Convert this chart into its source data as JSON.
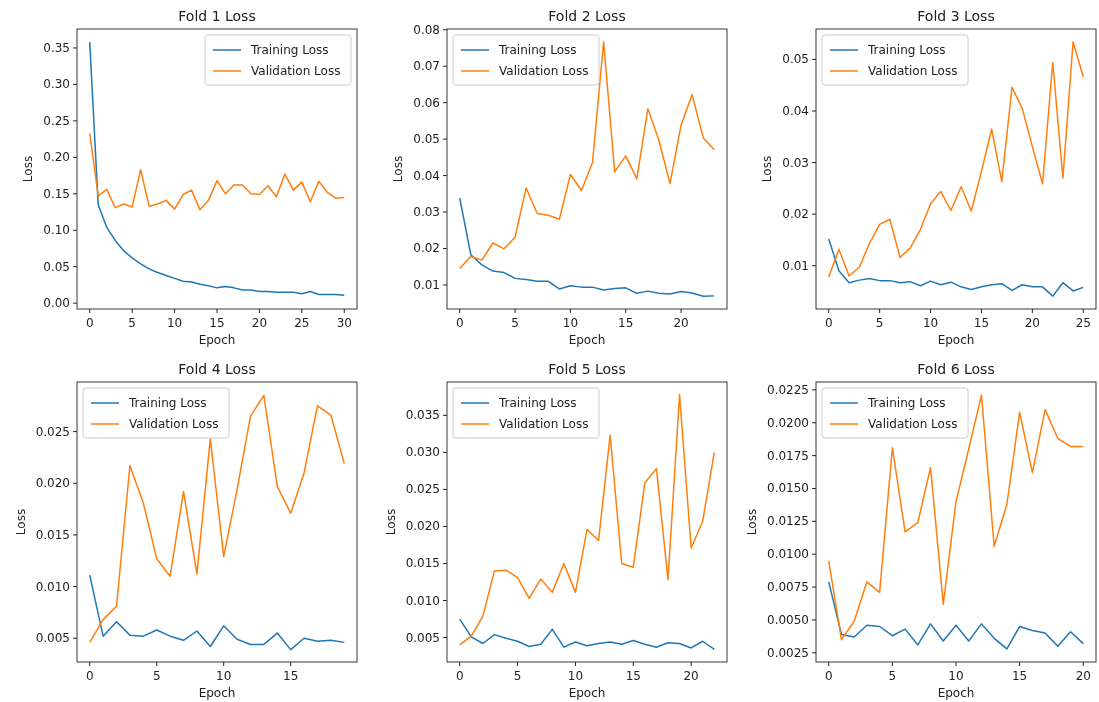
{
  "chart_data": [
    {
      "type": "line",
      "title": "Fold 1 Loss",
      "xlabel": "Epoch",
      "ylabel": "Loss",
      "legend": "top right",
      "grid": false,
      "xlim": [
        -1.5,
        31.5
      ],
      "xticks": [
        0,
        5,
        10,
        15,
        20,
        25,
        30
      ],
      "ylim": [
        -0.008,
        0.376
      ],
      "yticks": [
        {
          "value": 0,
          "label": "0.00"
        },
        0.05,
        {
          "value": 0.1,
          "label": "0.10"
        },
        0.15,
        {
          "value": 0.2,
          "label": "0.20"
        },
        0.25,
        {
          "value": 0.3,
          "label": "0.30"
        },
        0.35
      ],
      "x": [
        0,
        1,
        2,
        3,
        4,
        5,
        6,
        7,
        8,
        9,
        10,
        11,
        12,
        13,
        14,
        15,
        16,
        17,
        18,
        19,
        20,
        21,
        22,
        23,
        24,
        25,
        26,
        27,
        28,
        29,
        30
      ],
      "series": [
        {
          "name": "Training Loss",
          "color": "#1f77b4",
          "values": [
            0.358,
            0.135,
            0.104,
            0.086,
            0.072,
            0.062,
            0.054,
            0.047,
            0.042,
            0.038,
            0.034,
            0.03,
            0.029,
            0.026,
            0.024,
            0.021,
            0.023,
            0.021,
            0.018,
            0.018,
            0.016,
            0.016,
            0.015,
            0.015,
            0.015,
            0.013,
            0.016,
            0.012,
            0.012,
            0.012,
            0.011
          ]
        },
        {
          "name": "Validation Loss",
          "color": "#ff7f0e",
          "values": [
            0.233,
            0.147,
            0.156,
            0.131,
            0.136,
            0.132,
            0.183,
            0.133,
            0.136,
            0.141,
            0.129,
            0.149,
            0.155,
            0.128,
            0.141,
            0.168,
            0.15,
            0.162,
            0.162,
            0.15,
            0.149,
            0.161,
            0.146,
            0.177,
            0.155,
            0.166,
            0.139,
            0.167,
            0.152,
            0.144,
            0.145
          ]
        }
      ]
    },
    {
      "type": "line",
      "title": "Fold 2 Loss",
      "xlabel": "Epoch",
      "ylabel": "Loss",
      "legend": "top left",
      "grid": false,
      "xlim": [
        -1.15,
        24.15
      ],
      "xticks": [
        0,
        5,
        10,
        15,
        20
      ],
      "ylim": [
        0.0034,
        0.0802
      ],
      "yticks": [
        0.01,
        {
          "value": 0.02,
          "label": "0.02"
        },
        0.03,
        0.04,
        0.05,
        0.06,
        0.07,
        0.08
      ],
      "x": [
        0,
        1,
        2,
        3,
        4,
        5,
        6,
        7,
        8,
        9,
        10,
        11,
        12,
        13,
        14,
        15,
        16,
        17,
        18,
        19,
        20,
        21,
        22,
        23
      ],
      "series": [
        {
          "name": "Training Loss",
          "color": "#1f77b4",
          "values": [
            0.0338,
            0.0183,
            0.0155,
            0.0138,
            0.0134,
            0.0118,
            0.0115,
            0.011,
            0.011,
            0.0089,
            0.0098,
            0.0094,
            0.0094,
            0.0086,
            0.009,
            0.0092,
            0.0077,
            0.0083,
            0.0077,
            0.0075,
            0.0082,
            0.0078,
            0.0069,
            0.007
          ]
        },
        {
          "name": "Validation Loss",
          "color": "#ff7f0e",
          "values": [
            0.0145,
            0.0178,
            0.0168,
            0.0215,
            0.0199,
            0.0231,
            0.0366,
            0.0296,
            0.0291,
            0.028,
            0.0403,
            0.0359,
            0.0436,
            0.0767,
            0.041,
            0.0454,
            0.0391,
            0.0583,
            0.0497,
            0.0378,
            0.0539,
            0.0622,
            0.0504,
            0.0471
          ]
        }
      ]
    },
    {
      "type": "line",
      "title": "Fold 3 Loss",
      "xlabel": "Epoch",
      "ylabel": "Loss",
      "legend": "top left",
      "grid": false,
      "xlim": [
        -1.25,
        26.25
      ],
      "xticks": [
        0,
        5,
        10,
        15,
        20,
        25
      ],
      "ylim": [
        0.0016,
        0.0559
      ],
      "yticks": [
        0.01,
        0.02,
        0.03,
        0.04,
        0.05
      ],
      "x": [
        0,
        1,
        2,
        3,
        4,
        5,
        6,
        7,
        8,
        9,
        10,
        11,
        12,
        13,
        14,
        15,
        16,
        17,
        18,
        19,
        20,
        21,
        22,
        23,
        24,
        25
      ],
      "series": [
        {
          "name": "Training Loss",
          "color": "#1f77b4",
          "values": [
            0.0152,
            0.009,
            0.0067,
            0.0072,
            0.0075,
            0.0071,
            0.0071,
            0.0067,
            0.0069,
            0.0061,
            0.007,
            0.0063,
            0.0068,
            0.0059,
            0.0054,
            0.0059,
            0.0063,
            0.0065,
            0.0052,
            0.0063,
            0.0059,
            0.0059,
            0.0041,
            0.0067,
            0.0051,
            0.0058
          ]
        },
        {
          "name": "Validation Loss",
          "color": "#ff7f0e",
          "values": [
            0.0078,
            0.0132,
            0.008,
            0.0097,
            0.0143,
            0.018,
            0.019,
            0.0116,
            0.0134,
            0.017,
            0.022,
            0.0244,
            0.0207,
            0.0253,
            0.0206,
            0.0283,
            0.0365,
            0.0263,
            0.0446,
            0.0405,
            0.0331,
            0.0259,
            0.0494,
            0.027,
            0.0534,
            0.0466
          ]
        }
      ]
    },
    {
      "type": "line",
      "title": "Fold 4 Loss",
      "xlabel": "Epoch",
      "ylabel": "Loss",
      "legend": "top left",
      "grid": false,
      "xlim": [
        -0.95,
        19.95
      ],
      "xticks": [
        0,
        5,
        10,
        15
      ],
      "ylim": [
        0.0027,
        0.0298
      ],
      "yticks": [
        0.005,
        {
          "value": 0.01,
          "label": "0.010"
        },
        0.015,
        {
          "value": 0.02,
          "label": "0.020"
        },
        0.025
      ],
      "x": [
        0,
        1,
        2,
        3,
        4,
        5,
        6,
        7,
        8,
        9,
        10,
        11,
        12,
        13,
        14,
        15,
        16,
        17,
        18,
        19
      ],
      "series": [
        {
          "name": "Training Loss",
          "color": "#1f77b4",
          "values": [
            0.0111,
            0.0052,
            0.0066,
            0.0053,
            0.0052,
            0.0058,
            0.0052,
            0.0048,
            0.0057,
            0.0042,
            0.0062,
            0.0049,
            0.0044,
            0.0044,
            0.0055,
            0.0039,
            0.005,
            0.0047,
            0.0048,
            0.0046
          ]
        },
        {
          "name": "Validation Loss",
          "color": "#ff7f0e",
          "values": [
            0.0046,
            0.0068,
            0.0081,
            0.0217,
            0.0181,
            0.0127,
            0.011,
            0.0192,
            0.0112,
            0.0243,
            0.0129,
            0.0194,
            0.0265,
            0.0285,
            0.0197,
            0.0171,
            0.021,
            0.0275,
            0.0266,
            0.0219
          ]
        }
      ]
    },
    {
      "type": "line",
      "title": "Fold 5 Loss",
      "xlabel": "Epoch",
      "ylabel": "Loss",
      "legend": "top left",
      "grid": false,
      "xlim": [
        -1.1,
        23.1
      ],
      "xticks": [
        0,
        5,
        10,
        15,
        20
      ],
      "ylim": [
        0.0017,
        0.0395
      ],
      "yticks": [
        0.005,
        {
          "value": 0.01,
          "label": "0.010"
        },
        0.015,
        {
          "value": 0.02,
          "label": "0.020"
        },
        0.025,
        {
          "value": 0.03,
          "label": "0.030"
        },
        0.035
      ],
      "x": [
        0,
        1,
        2,
        3,
        4,
        5,
        6,
        7,
        8,
        9,
        10,
        11,
        12,
        13,
        14,
        15,
        16,
        17,
        18,
        19,
        20,
        21,
        22
      ],
      "series": [
        {
          "name": "Training Loss",
          "color": "#1f77b4",
          "values": [
            0.0075,
            0.0051,
            0.0042,
            0.0054,
            0.0049,
            0.0045,
            0.0038,
            0.0041,
            0.0061,
            0.0037,
            0.0044,
            0.0039,
            0.0042,
            0.0044,
            0.0041,
            0.0046,
            0.0041,
            0.0037,
            0.0043,
            0.0042,
            0.0036,
            0.0045,
            0.0034
          ]
        },
        {
          "name": "Validation Loss",
          "color": "#ff7f0e",
          "values": [
            0.004,
            0.0052,
            0.0079,
            0.014,
            0.0141,
            0.0131,
            0.0103,
            0.0129,
            0.0111,
            0.015,
            0.0111,
            0.0196,
            0.0181,
            0.0323,
            0.015,
            0.0145,
            0.0259,
            0.0278,
            0.0128,
            0.0378,
            0.0171,
            0.0207,
            0.03
          ]
        }
      ]
    },
    {
      "type": "line",
      "title": "Fold 6 Loss",
      "xlabel": "Epoch",
      "ylabel": "Loss",
      "legend": "top left",
      "grid": false,
      "xlim": [
        -1,
        21
      ],
      "xticks": [
        0,
        5,
        10,
        15,
        20
      ],
      "ylim": [
        0.0018,
        0.0231
      ],
      "yticks": [
        0.0025,
        {
          "value": 0.005,
          "label": "0.0050"
        },
        0.0075,
        {
          "value": 0.01,
          "label": "0.0100"
        },
        0.0125,
        {
          "value": 0.015,
          "label": "0.0150"
        },
        0.0175,
        {
          "value": 0.02,
          "label": "0.0200"
        },
        0.0225
      ],
      "x": [
        0,
        1,
        2,
        3,
        4,
        5,
        6,
        7,
        8,
        9,
        10,
        11,
        12,
        13,
        14,
        15,
        16,
        17,
        18,
        19,
        20
      ],
      "series": [
        {
          "name": "Training Loss",
          "color": "#1f77b4",
          "values": [
            0.0079,
            0.0039,
            0.0037,
            0.0046,
            0.0045,
            0.0038,
            0.0043,
            0.0031,
            0.0047,
            0.0034,
            0.0046,
            0.0034,
            0.0047,
            0.0036,
            0.0028,
            0.0045,
            0.0042,
            0.004,
            0.003,
            0.0041,
            0.0032
          ]
        },
        {
          "name": "Validation Loss",
          "color": "#ff7f0e",
          "values": [
            0.0095,
            0.0035,
            0.0049,
            0.0079,
            0.0071,
            0.0181,
            0.0117,
            0.0124,
            0.0166,
            0.0062,
            0.014,
            0.018,
            0.0221,
            0.0106,
            0.0138,
            0.0208,
            0.0162,
            0.021,
            0.0188,
            0.0182,
            0.0182
          ]
        }
      ]
    }
  ]
}
